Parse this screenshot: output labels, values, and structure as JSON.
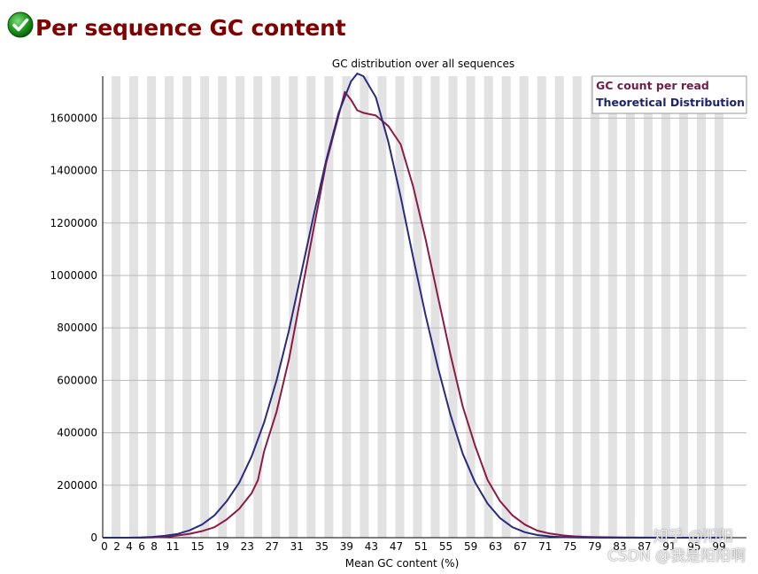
{
  "header": {
    "title": "Per sequence GC content",
    "status_icon": "check-icon"
  },
  "colors": {
    "title": "#800000",
    "series_observed": "#8B1A46",
    "series_theoretical": "#2A2A80",
    "stripe": "#e2e2e2",
    "grid": "#b8b8b8"
  },
  "watermarks": {
    "line1": "知乎 @阳阳",
    "line2": "CSDN @我是阳阳啊"
  },
  "chart_data": {
    "type": "line",
    "title": "GC distribution over all sequences",
    "xlabel": "Mean GC content (%)",
    "ylabel": "",
    "xlim": [
      0,
      100
    ],
    "ylim": [
      0,
      1760000
    ],
    "yticks": [
      "0",
      "200000",
      "400000",
      "600000",
      "800000",
      "1000000",
      "1200000",
      "1400000",
      "1600000"
    ],
    "xticks": [
      "0",
      "2",
      "4",
      "6",
      "8",
      "11",
      "15",
      "19",
      "23",
      "27",
      "31",
      "35",
      "39",
      "43",
      "47",
      "51",
      "55",
      "59",
      "63",
      "67",
      "71",
      "75",
      "79",
      "83",
      "87",
      "91",
      "95",
      "99"
    ],
    "grid": true,
    "legend_position": "top-right",
    "series": [
      {
        "name": "GC count per read",
        "color": "#8B1A46",
        "x": [
          0,
          2,
          4,
          6,
          8,
          10,
          12,
          14,
          16,
          18,
          20,
          22,
          24,
          25,
          26,
          28,
          30,
          32,
          34,
          36,
          38,
          39,
          40,
          41,
          42,
          44,
          46,
          48,
          50,
          52,
          54,
          56,
          58,
          60,
          62,
          64,
          66,
          68,
          70,
          72,
          74,
          76,
          78,
          80,
          84,
          88,
          92,
          96,
          100
        ],
        "y": [
          0,
          0,
          0,
          0,
          1000,
          3000,
          8000,
          15000,
          25000,
          40000,
          70000,
          110000,
          170000,
          220000,
          330000,
          480000,
          680000,
          930000,
          1180000,
          1430000,
          1610000,
          1700000,
          1670000,
          1630000,
          1620000,
          1610000,
          1570000,
          1500000,
          1340000,
          1140000,
          920000,
          700000,
          500000,
          350000,
          220000,
          140000,
          85000,
          50000,
          27000,
          16000,
          9000,
          5000,
          3000,
          2000,
          1000,
          500,
          0,
          0,
          0
        ]
      },
      {
        "name": "Theoretical Distribution",
        "color": "#2A2A80",
        "x": [
          0,
          2,
          4,
          6,
          8,
          10,
          12,
          14,
          16,
          18,
          20,
          22,
          24,
          26,
          28,
          30,
          32,
          34,
          36,
          38,
          40,
          41,
          42,
          44,
          46,
          48,
          50,
          52,
          54,
          56,
          58,
          60,
          62,
          64,
          66,
          68,
          70,
          72,
          74,
          76,
          78,
          80,
          84,
          88,
          92,
          96,
          100
        ],
        "y": [
          0,
          0,
          0,
          1000,
          3000,
          7000,
          14000,
          28000,
          50000,
          85000,
          140000,
          210000,
          310000,
          440000,
          600000,
          790000,
          1010000,
          1230000,
          1440000,
          1620000,
          1740000,
          1770000,
          1760000,
          1680000,
          1510000,
          1300000,
          1070000,
          850000,
          650000,
          470000,
          320000,
          210000,
          130000,
          75000,
          40000,
          21000,
          10000,
          5000,
          2000,
          1000,
          500,
          0,
          0,
          0,
          0,
          0,
          0
        ]
      }
    ]
  }
}
